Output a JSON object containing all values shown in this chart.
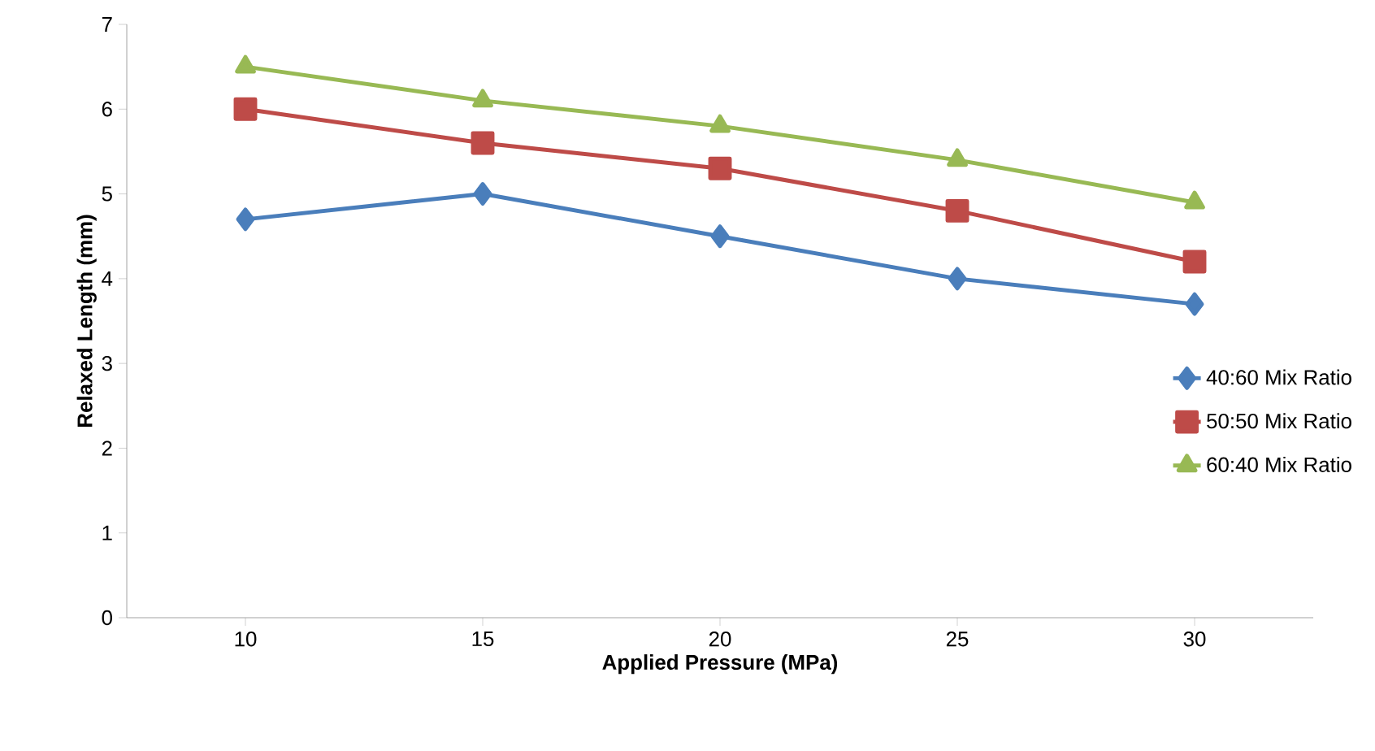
{
  "chart_data": {
    "type": "line",
    "xlabel": "Applied Pressure (MPa)",
    "ylabel": "Relaxed Length (mm)",
    "categories": [
      "10",
      "15",
      "20",
      "25",
      "30"
    ],
    "series": [
      {
        "name": "40:60 Mix Ratio",
        "color": "#4a7ebb",
        "marker": "diamond",
        "values": [
          4.7,
          5.0,
          4.5,
          4.0,
          3.7
        ]
      },
      {
        "name": "50:50 Mix Ratio",
        "color": "#be4b48",
        "marker": "square",
        "values": [
          6.0,
          5.6,
          5.3,
          4.8,
          4.2
        ]
      },
      {
        "name": "60:40 Mix Ratio",
        "color": "#98b954",
        "marker": "triangle",
        "values": [
          6.5,
          6.1,
          5.8,
          5.4,
          4.9
        ]
      }
    ],
    "ylim": [
      0,
      7
    ],
    "yticks": [
      0,
      1,
      2,
      3,
      4,
      5,
      6,
      7
    ],
    "grid": false,
    "legend": "right",
    "line_style": "solid"
  }
}
